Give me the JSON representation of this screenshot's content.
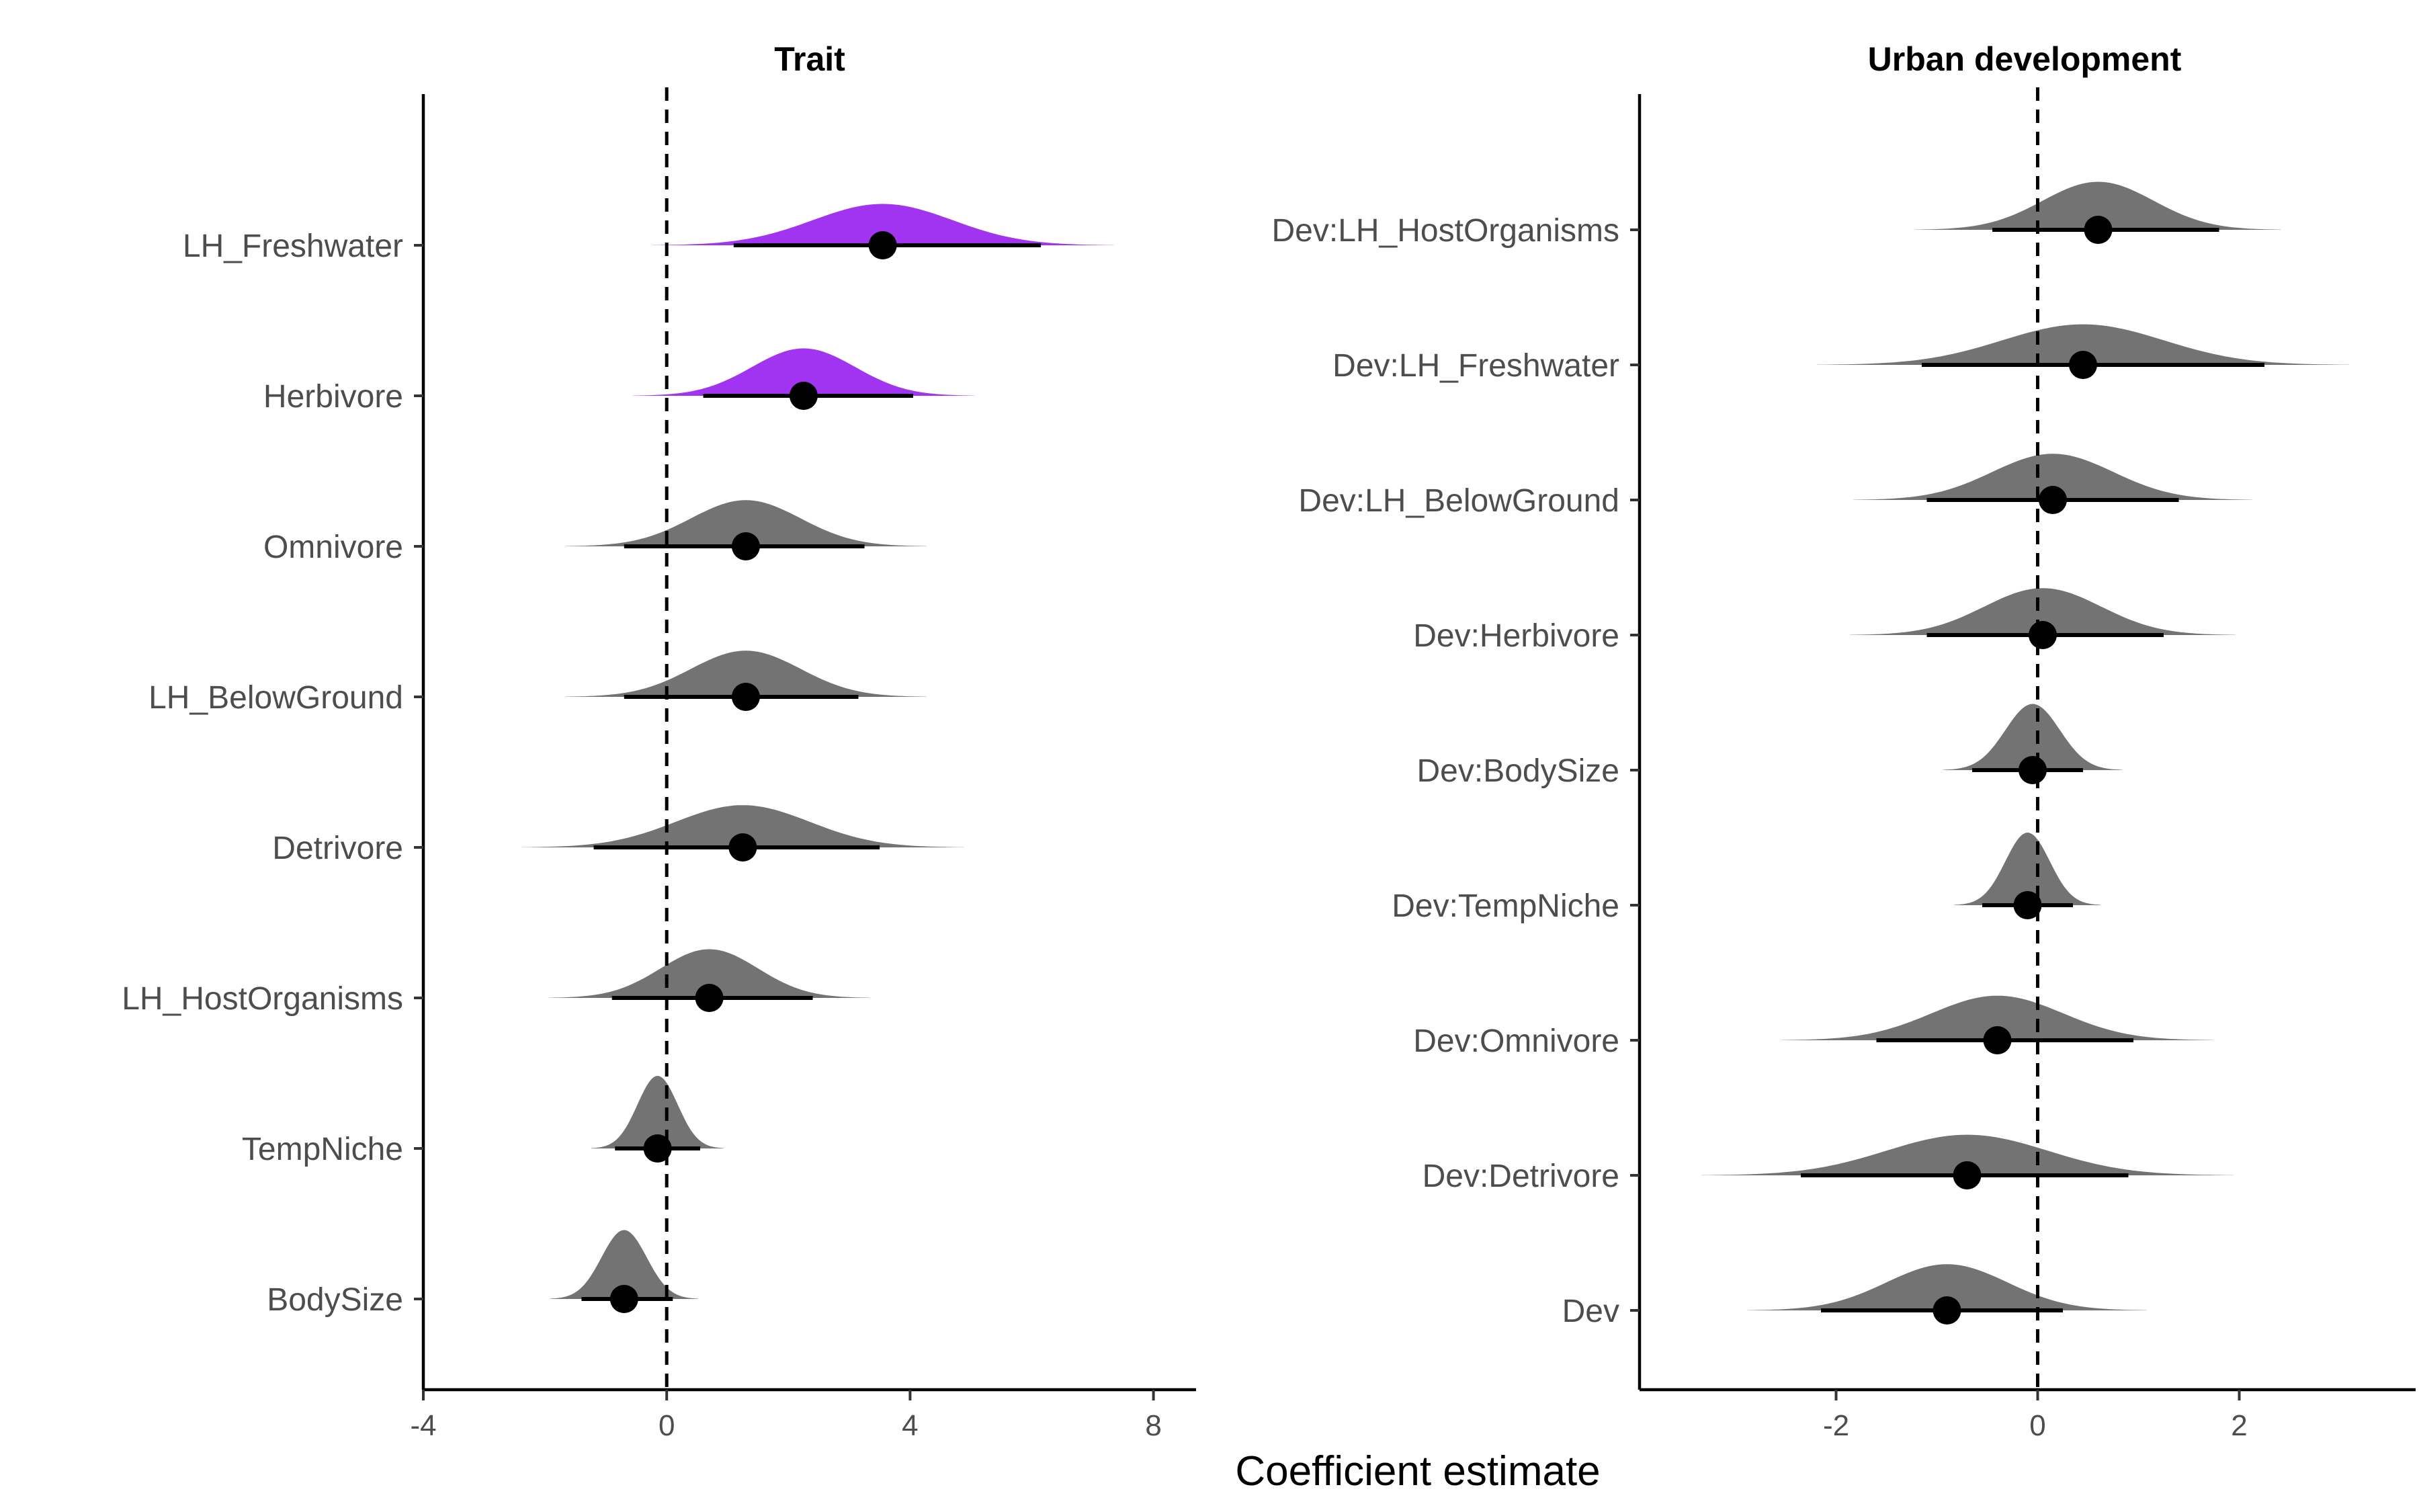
{
  "x_axis_title": "Coefficient estimate",
  "colors": {
    "highlight": "#a034f0",
    "default": "#737373",
    "point": "#000000",
    "axis_text": "#4d4d4d"
  },
  "chart_data": [
    {
      "type": "halfeye",
      "title": "Trait",
      "xlim": [
        -4,
        8.7
      ],
      "xticks": [
        -4,
        0,
        4,
        8
      ],
      "tick_labels": [
        "-4",
        "0",
        "4",
        "8"
      ],
      "reference_line": 0,
      "categories": [
        "LH_Freshwater",
        "Herbivore",
        "Omnivore",
        "LH_BelowGround",
        "Detrivore",
        "LH_HostOrganisms",
        "TempNiche",
        "BodySize"
      ],
      "estimates": [
        {
          "name": "LH_Freshwater",
          "median": 3.55,
          "lower": 1.1,
          "upper": 6.15,
          "sd": 1.15,
          "significant": true
        },
        {
          "name": "Herbivore",
          "median": 2.25,
          "lower": 0.6,
          "upper": 4.05,
          "sd": 0.85,
          "significant": true
        },
        {
          "name": "Omnivore",
          "median": 1.3,
          "lower": -0.7,
          "upper": 3.25,
          "sd": 0.9,
          "significant": false
        },
        {
          "name": "LH_BelowGround",
          "median": 1.3,
          "lower": -0.7,
          "upper": 3.15,
          "sd": 0.9,
          "significant": false
        },
        {
          "name": "Detrivore",
          "median": 1.25,
          "lower": -1.2,
          "upper": 3.5,
          "sd": 1.1,
          "significant": false
        },
        {
          "name": "LH_HostOrganisms",
          "median": 0.7,
          "lower": -0.9,
          "upper": 2.4,
          "sd": 0.8,
          "significant": false
        },
        {
          "name": "TempNiche",
          "median": -0.15,
          "lower": -0.85,
          "upper": 0.55,
          "sd": 0.33,
          "significant": false
        },
        {
          "name": "BodySize",
          "median": -0.7,
          "lower": -1.4,
          "upper": 0.1,
          "sd": 0.37,
          "significant": false
        }
      ]
    },
    {
      "type": "halfeye",
      "title": "Urban development",
      "xlim": [
        -3.95,
        3.75
      ],
      "xticks": [
        -2,
        0,
        2
      ],
      "tick_labels": [
        "-2",
        "0",
        "2"
      ],
      "reference_line": 0,
      "categories": [
        "Dev:LH_HostOrganisms",
        "Dev:LH_Freshwater",
        "Dev:LH_BelowGround",
        "Dev:Herbivore",
        "Dev:BodySize",
        "Dev:TempNiche",
        "Dev:Omnivore",
        "Dev:Detrivore",
        "Dev"
      ],
      "estimates": [
        {
          "name": "Dev:LH_HostOrganisms",
          "median": 0.6,
          "lower": -0.45,
          "upper": 1.8,
          "sd": 0.55,
          "significant": false
        },
        {
          "name": "Dev:LH_Freshwater",
          "median": 0.45,
          "lower": -1.15,
          "upper": 2.25,
          "sd": 0.8,
          "significant": false
        },
        {
          "name": "Dev:LH_BelowGround",
          "median": 0.15,
          "lower": -1.1,
          "upper": 1.4,
          "sd": 0.6,
          "significant": false
        },
        {
          "name": "Dev:Herbivore",
          "median": 0.05,
          "lower": -1.1,
          "upper": 1.25,
          "sd": 0.58,
          "significant": false
        },
        {
          "name": "Dev:BodySize",
          "median": -0.05,
          "lower": -0.65,
          "upper": 0.45,
          "sd": 0.27,
          "significant": false
        },
        {
          "name": "Dev:TempNiche",
          "median": -0.1,
          "lower": -0.55,
          "upper": 0.35,
          "sd": 0.22,
          "significant": false
        },
        {
          "name": "Dev:Omnivore",
          "median": -0.4,
          "lower": -1.6,
          "upper": 0.95,
          "sd": 0.65,
          "significant": false
        },
        {
          "name": "Dev:Detrivore",
          "median": -0.7,
          "lower": -2.35,
          "upper": 0.9,
          "sd": 0.8,
          "significant": false
        },
        {
          "name": "Dev",
          "median": -0.9,
          "lower": -2.15,
          "upper": 0.25,
          "sd": 0.6,
          "significant": false
        }
      ]
    }
  ]
}
